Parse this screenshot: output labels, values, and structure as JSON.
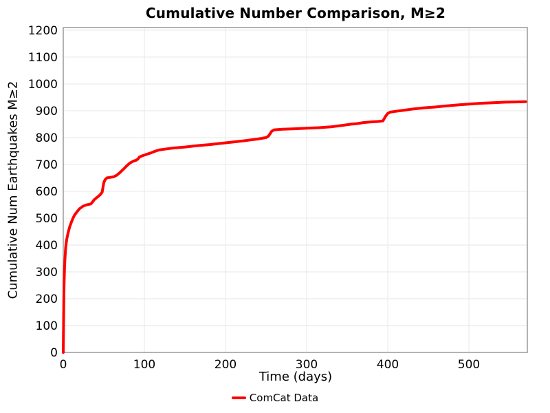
{
  "figure": {
    "background": "#ffffff"
  },
  "colors": {
    "line": "#ff0000",
    "spine": "#a0a0a0",
    "grid": "#ebebeb",
    "text": "#000000"
  },
  "chart_data": {
    "type": "line",
    "title": "Cumulative Number Comparison, M≥2",
    "xlabel": "Time (days)",
    "ylabel": "Cumulative Num Earthquakes M≥2",
    "xlim": [
      0,
      572
    ],
    "ylim": [
      0,
      1210
    ],
    "xticks": [
      0,
      100,
      200,
      300,
      400,
      500
    ],
    "yticks": [
      0,
      100,
      200,
      300,
      400,
      500,
      600,
      700,
      800,
      900,
      1000,
      1100,
      1200
    ],
    "grid": true,
    "legend": {
      "position": "bottom-center",
      "entries": [
        {
          "label": "ComCat Data",
          "color": "#ff0000"
        }
      ]
    },
    "series": [
      {
        "name": "ComCat Data",
        "color": "#ff0000",
        "x": [
          0,
          0.3,
          0.7,
          1,
          1.5,
          2,
          3,
          4,
          5,
          6.5,
          8,
          10,
          12,
          14,
          17,
          20,
          24,
          28,
          31,
          34,
          36,
          38,
          41,
          44,
          46,
          48,
          49,
          50,
          51,
          52,
          54,
          58,
          62,
          66,
          70,
          74,
          78,
          82,
          86,
          90,
          92,
          94,
          98,
          103,
          108,
          112,
          118,
          125,
          135,
          150,
          165,
          180,
          195,
          210,
          225,
          240,
          250,
          253,
          255,
          257,
          260,
          270,
          285,
          300,
          315,
          330,
          345,
          355,
          362,
          370,
          378,
          388,
          394,
          397,
          400,
          403,
          410,
          420,
          432,
          445,
          458,
          472,
          488,
          500,
          515,
          530,
          545,
          558,
          570
        ],
        "y": [
          0,
          90,
          185,
          255,
          310,
          345,
          390,
          415,
          432,
          452,
          468,
          485,
          500,
          512,
          524,
          535,
          544,
          549,
          551,
          553,
          560,
          568,
          576,
          583,
          589,
          597,
          615,
          632,
          640,
          645,
          650,
          652,
          654,
          660,
          670,
          682,
          694,
          705,
          712,
          716,
          720,
          728,
          733,
          738,
          743,
          748,
          754,
          757,
          761,
          765,
          770,
          774,
          779,
          784,
          789,
          795,
          800,
          806,
          815,
          824,
          829,
          831,
          833,
          835,
          837,
          840,
          846,
          850,
          852,
          856,
          858,
          860,
          862,
          878,
          890,
          895,
          898,
          902,
          907,
          911,
          914,
          918,
          922,
          925,
          928,
          930,
          932,
          933,
          934
        ]
      }
    ]
  }
}
